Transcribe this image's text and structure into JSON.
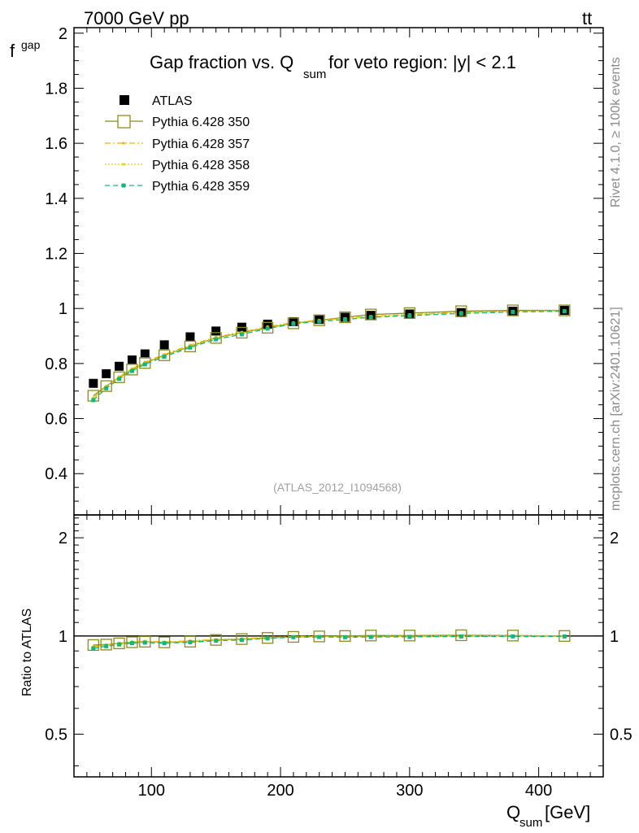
{
  "header": {
    "left": "7000 GeV pp",
    "right_main": "tt",
    "right_bar": "¯"
  },
  "side": {
    "rivet": "Rivet 4.1.0, ≥ 100k events",
    "source": "mcplots.cern.ch [arXiv:2401.10621]"
  },
  "chart_data": {
    "type": "scatter",
    "title": {
      "main": "Gap fraction vs. Q",
      "sub": "sum",
      "rest": " for veto region: |y| < 2.1"
    },
    "watermark": "(ATLAS_2012_I1094568)",
    "ylabel": {
      "main": "f",
      "sub": "gap"
    },
    "ratio_ylabel": "Ratio to ATLAS",
    "xlabel": {
      "main": "Q",
      "sub": "sum",
      "rest": " [GeV]"
    },
    "xlim": [
      40,
      450
    ],
    "ylim": [
      0.25,
      2.02
    ],
    "ratio_ylim": [
      0.37,
      2.35
    ],
    "x_ticks": [
      "100",
      "200",
      "300",
      "400"
    ],
    "y_ticks": [
      "0.4",
      "0.6",
      "0.8",
      "1",
      "1.2",
      "1.4",
      "1.6",
      "1.8",
      "2"
    ],
    "ratio_ticks": [
      "0.5",
      "1",
      "2"
    ],
    "x": [
      55,
      65,
      75,
      85,
      95,
      110,
      130,
      150,
      170,
      190,
      210,
      230,
      250,
      270,
      300,
      340,
      380,
      420
    ],
    "series": [
      {
        "name": "ATLAS",
        "color": "#000000",
        "style": "data",
        "values": [
          0.728,
          0.763,
          0.79,
          0.813,
          0.835,
          0.868,
          0.897,
          0.918,
          0.932,
          0.943,
          0.952,
          0.96,
          0.968,
          0.975,
          0.98,
          0.985,
          0.99,
          0.993
        ]
      },
      {
        "name": "Pythia 6.428 350",
        "color": "#8b8b20",
        "style": "box",
        "values": [
          0.683,
          0.718,
          0.75,
          0.778,
          0.802,
          0.83,
          0.862,
          0.893,
          0.912,
          0.93,
          0.946,
          0.957,
          0.968,
          0.978,
          0.983,
          0.99,
          0.993,
          0.993
        ]
      },
      {
        "name": "Pythia 6.428 357",
        "color": "#f0b400",
        "style": "dashdot",
        "values": [
          0.675,
          0.718,
          0.752,
          0.781,
          0.805,
          0.833,
          0.867,
          0.896,
          0.914,
          0.934,
          0.949,
          0.958,
          0.964,
          0.972,
          0.978,
          0.986,
          0.99,
          0.992
        ]
      },
      {
        "name": "Pythia 6.428 358",
        "color": "#d8d800",
        "style": "dotted",
        "values": [
          0.672,
          0.714,
          0.748,
          0.777,
          0.801,
          0.829,
          0.863,
          0.893,
          0.911,
          0.931,
          0.947,
          0.956,
          0.962,
          0.97,
          0.976,
          0.984,
          0.989,
          0.991
        ]
      },
      {
        "name": "Pythia 6.428 359",
        "color": "#10b87a",
        "style": "dashed",
        "values": [
          0.667,
          0.71,
          0.744,
          0.773,
          0.797,
          0.825,
          0.858,
          0.888,
          0.906,
          0.927,
          0.944,
          0.953,
          0.96,
          0.968,
          0.974,
          0.982,
          0.987,
          0.99
        ]
      }
    ]
  }
}
